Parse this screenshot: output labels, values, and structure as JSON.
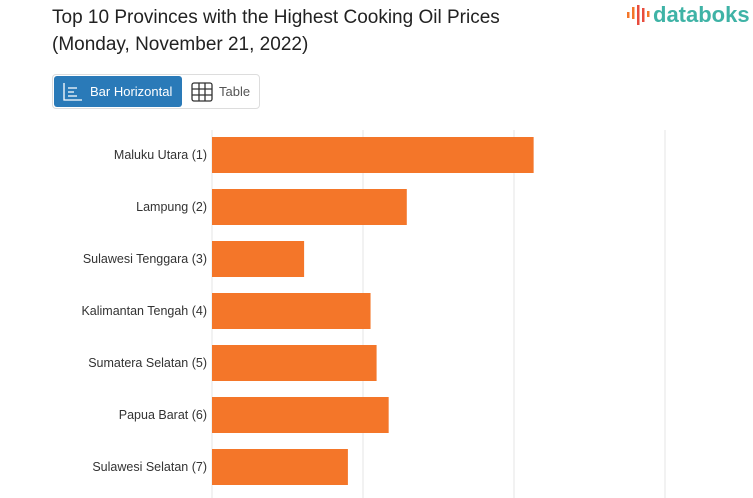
{
  "title_line1": "Top 10 Provinces with the Highest Cooking Oil Prices",
  "title_line2": "(Monday, November 21, 2022)",
  "logo": "databoks",
  "tabs": [
    {
      "label": "Bar Horizontal",
      "icon": "bar-horizontal-icon",
      "active": true
    },
    {
      "label": "Table",
      "icon": "table-icon",
      "active": false
    }
  ],
  "colors": {
    "bar": "#f47629",
    "accent": "#2a7ab8",
    "logo": "#3fb3a6"
  },
  "chart_data": {
    "type": "bar",
    "orientation": "horizontal",
    "categories": [
      "Maluku Utara (1)",
      "Lampung (2)",
      "Sulawesi Tenggara (3)",
      "Kalimantan Tengah (4)",
      "Sumatera Selatan (5)",
      "Papua Barat (6)",
      "Sulawesi Selatan (7)"
    ],
    "values": [
      2.13,
      1.29,
      0.61,
      1.05,
      1.09,
      1.17,
      0.9
    ],
    "xlim": [
      0,
      3
    ],
    "grid": true,
    "title": "",
    "xlabel": "",
    "ylabel": ""
  }
}
